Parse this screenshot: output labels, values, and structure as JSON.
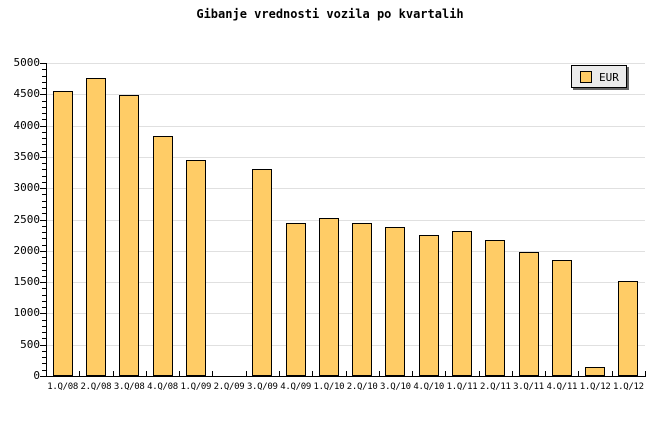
{
  "title": "Gibanje vrednosti vozila po kvartalih",
  "legend": {
    "label": "EUR",
    "position": "top-right"
  },
  "colors": {
    "bar_fill": "#FFCC66",
    "bar_border": "#000000",
    "grid": "#E0E0E0",
    "axis": "#000000",
    "background": "#FFFFFF",
    "legend_bg": "#EBEBEB",
    "legend_shadow": "#666666"
  },
  "chart_data": {
    "type": "bar",
    "title": "Gibanje vrednosti vozila po kvartalih",
    "xlabel": "",
    "ylabel": "",
    "categories": [
      "1.Q/08",
      "2.Q/08",
      "3.Q/08",
      "4.Q/08",
      "1.Q/09",
      "2.Q/09",
      "3.Q/09",
      "4.Q/09",
      "1.Q/10",
      "2.Q/10",
      "3.Q/10",
      "4.Q/10",
      "1.Q/11",
      "2.Q/11",
      "3.Q/11",
      "4.Q/11",
      "1.Q/12",
      "1.Q/12"
    ],
    "series": [
      {
        "name": "EUR",
        "values": [
          4560,
          4760,
          4490,
          3840,
          3450,
          null,
          3300,
          2450,
          2530,
          2450,
          2380,
          2250,
          2320,
          2180,
          1980,
          1850,
          140,
          1520
        ]
      }
    ],
    "ylim": [
      0,
      5000
    ],
    "ytick_step": 500,
    "yminor_step": 100,
    "grid": "horizontal-major",
    "legend_position": "top-right",
    "note": "no bar rendered for 2.Q/09; last two category labels are both 1.Q/12"
  }
}
